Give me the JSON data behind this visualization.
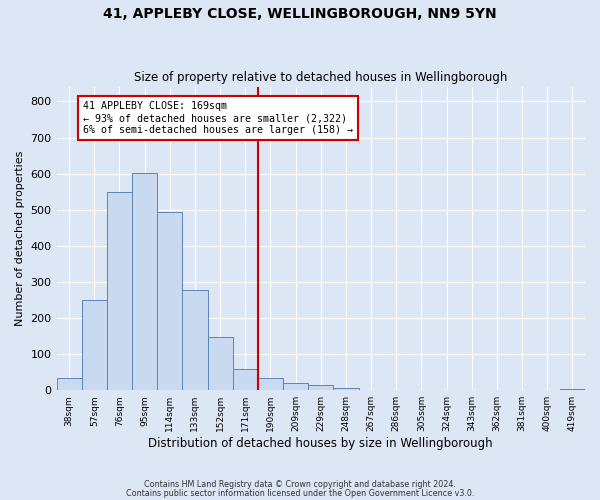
{
  "title": "41, APPLEBY CLOSE, WELLINGBOROUGH, NN9 5YN",
  "subtitle": "Size of property relative to detached houses in Wellingborough",
  "xlabel": "Distribution of detached houses by size in Wellingborough",
  "ylabel": "Number of detached properties",
  "bin_labels": [
    "38sqm",
    "57sqm",
    "76sqm",
    "95sqm",
    "114sqm",
    "133sqm",
    "152sqm",
    "171sqm",
    "190sqm",
    "209sqm",
    "229sqm",
    "248sqm",
    "267sqm",
    "286sqm",
    "305sqm",
    "324sqm",
    "343sqm",
    "362sqm",
    "381sqm",
    "400sqm",
    "419sqm"
  ],
  "bar_heights": [
    35,
    250,
    548,
    603,
    494,
    278,
    148,
    60,
    35,
    20,
    14,
    5,
    1,
    1,
    1,
    1,
    1,
    1,
    1,
    1,
    2
  ],
  "bar_color": "#c8d9f0",
  "bar_edge_color": "#5a85b8",
  "vline_color": "#cc0000",
  "annotation_title": "41 APPLEBY CLOSE: 169sqm",
  "annotation_line1": "← 93% of detached houses are smaller (2,322)",
  "annotation_line2": "6% of semi-detached houses are larger (158) →",
  "annotation_box_edgecolor": "#cc0000",
  "ylim": [
    0,
    840
  ],
  "yticks": [
    0,
    100,
    200,
    300,
    400,
    500,
    600,
    700,
    800
  ],
  "footer1": "Contains HM Land Registry data © Crown copyright and database right 2024.",
  "footer2": "Contains public sector information licensed under the Open Government Licence v3.0.",
  "background_color": "#dce6f5",
  "grid_color": "#ffffff"
}
